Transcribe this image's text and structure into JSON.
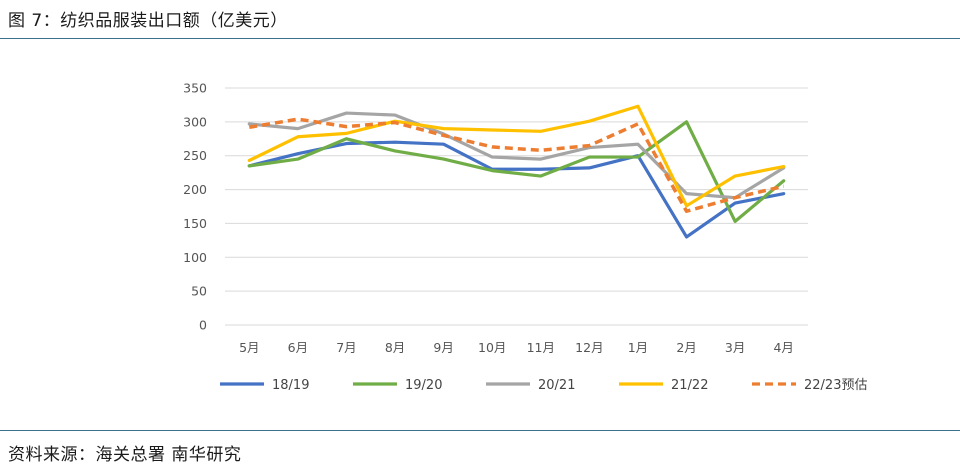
{
  "title": "图 7：纺织品服装出口额（亿美元）",
  "source": "资料来源：海关总署 南华研究",
  "chart_data": {
    "type": "line",
    "title": "纺织品服装出口额（亿美元）",
    "xlabel": "",
    "ylabel": "",
    "ylim": [
      0,
      350
    ],
    "yticks": [
      "0",
      "50",
      "100",
      "150",
      "200",
      "250",
      "300",
      "350"
    ],
    "categories": [
      "5月",
      "6月",
      "7月",
      "8月",
      "9月",
      "10月",
      "11月",
      "12月",
      "1月",
      "2月",
      "3月",
      "4月"
    ],
    "grid": true,
    "legend_position": "bottom",
    "series": [
      {
        "name": "18/19",
        "color": "#4472c4",
        "dashed": false,
        "values": [
          235,
          253,
          268,
          270,
          267,
          230,
          230,
          232,
          250,
          130,
          180,
          194
        ]
      },
      {
        "name": "19/20",
        "color": "#70ad47",
        "dashed": false,
        "values": [
          235,
          245,
          275,
          257,
          245,
          228,
          220,
          248,
          248,
          300,
          153,
          213
        ]
      },
      {
        "name": "20/21",
        "color": "#a5a5a5",
        "dashed": false,
        "values": [
          297,
          290,
          313,
          310,
          282,
          248,
          245,
          262,
          267,
          194,
          188,
          232
        ]
      },
      {
        "name": "21/22",
        "color": "#ffc000",
        "dashed": false,
        "values": [
          243,
          278,
          283,
          301,
          290,
          288,
          286,
          301,
          323,
          176,
          220,
          234
        ]
      },
      {
        "name": "22/23预估",
        "color": "#ed7d31",
        "dashed": true,
        "values": [
          292,
          304,
          293,
          299,
          280,
          263,
          258,
          265,
          297,
          168,
          188,
          205
        ]
      }
    ]
  }
}
